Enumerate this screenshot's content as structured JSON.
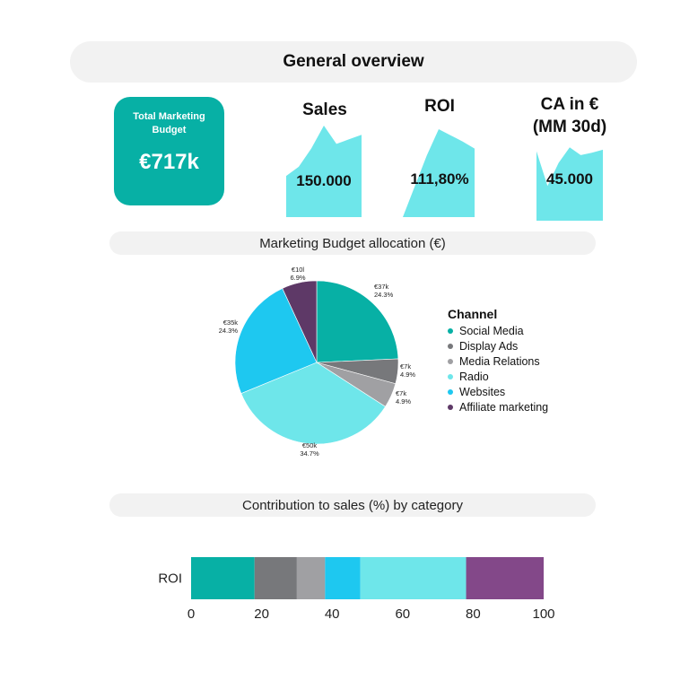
{
  "header": {
    "title": "General overview"
  },
  "budget_card": {
    "label": "Total Marketing Budget",
    "value": "€717k"
  },
  "kpis": [
    {
      "title": "Sales",
      "value": "150.000"
    },
    {
      "title": "ROI",
      "value": "111,80%"
    },
    {
      "title": "CA in €\n(MM 30d)",
      "value": "45.000"
    }
  ],
  "sections": {
    "allocation_title": "Marketing Budget allocation (€)",
    "contribution_title": "Contribution to sales (%) by category"
  },
  "colors": {
    "teal": "#07b0a5",
    "light_cyan": "#6ee6ea",
    "dark_gray": "#77787b",
    "gray": "#a0a0a3",
    "sky": "#1ec8f0",
    "purple_dark": "#5e3967",
    "purple": "#834889"
  },
  "chart_data": [
    {
      "type": "pie",
      "title": "Marketing Budget allocation (€)",
      "legend_title": "Channel",
      "legend_position": "right",
      "slices": [
        {
          "name": "Social Media",
          "value": 24.3,
          "label": "€37k",
          "pct": "24.3%",
          "color": "#07b0a5"
        },
        {
          "name": "Display Ads",
          "value": 4.9,
          "label": "€7k",
          "pct": "4.9%",
          "color": "#77787b"
        },
        {
          "name": "Media Relations",
          "value": 4.9,
          "label": "€7k",
          "pct": "4.9%",
          "color": "#a0a0a3"
        },
        {
          "name": "Radio",
          "value": 34.7,
          "label": "€50k",
          "pct": "34.7%",
          "color": "#6ee6ea"
        },
        {
          "name": "Websites",
          "value": 24.3,
          "label": "€35k",
          "pct": "24.3%",
          "color": "#1ec8f0"
        },
        {
          "name": "Affiliate marketing",
          "value": 6.9,
          "label": "€10l",
          "pct": "6.9%",
          "color": "#5e3967"
        }
      ]
    },
    {
      "type": "bar",
      "orientation": "horizontal",
      "stacked": true,
      "title": "Contribution to sales (%) by category",
      "categories": [
        "ROI"
      ],
      "xlim": [
        0,
        100
      ],
      "xticks": [
        "0",
        "20",
        "40",
        "60",
        "80",
        "100"
      ],
      "series": [
        {
          "values": [
            18
          ],
          "color": "#07b0a5"
        },
        {
          "values": [
            12
          ],
          "color": "#77787b"
        },
        {
          "values": [
            8
          ],
          "color": "#a0a0a3"
        },
        {
          "values": [
            10
          ],
          "color": "#1ec8f0"
        },
        {
          "values": [
            30
          ],
          "color": "#6ee6ea"
        },
        {
          "values": [
            22
          ],
          "color": "#834889"
        }
      ]
    },
    {
      "type": "area",
      "title": "Sales",
      "values": [
        0.45,
        0.55,
        0.75,
        1.0,
        0.8,
        0.85,
        0.9
      ]
    },
    {
      "type": "area",
      "title": "ROI",
      "values": [
        0.0,
        0.35,
        0.7,
        1.0,
        0.93,
        0.86,
        0.78
      ]
    },
    {
      "type": "area",
      "title": "CA in € (MM 30d)",
      "values": [
        0.9,
        0.45,
        0.75,
        0.95,
        0.85,
        0.88,
        0.92
      ]
    }
  ]
}
